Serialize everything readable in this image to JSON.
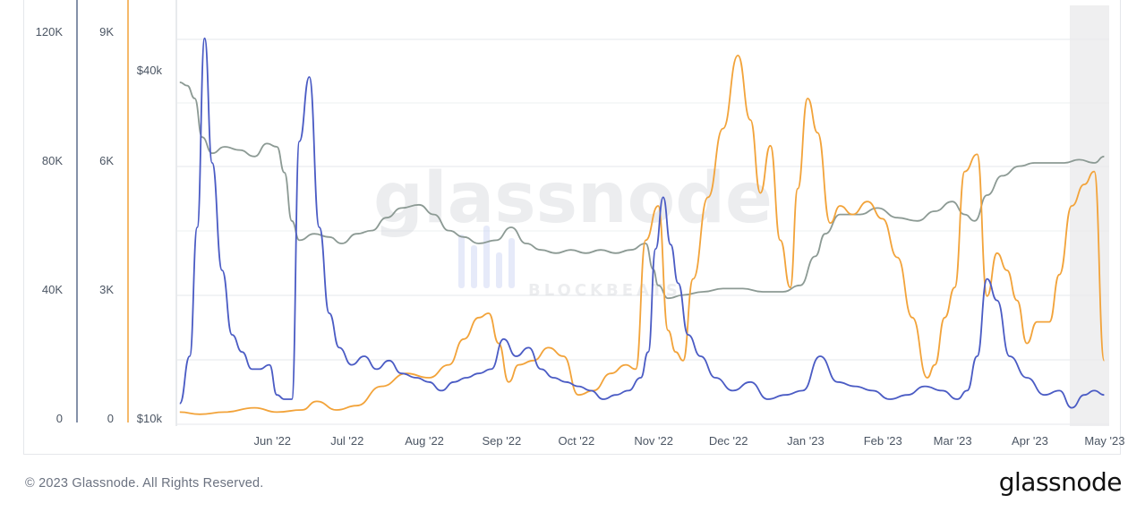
{
  "chart_data": {
    "type": "line",
    "x_ticks": [
      "Jun '22",
      "Jul '22",
      "Aug '22",
      "Sep '22",
      "Oct '22",
      "Nov '22",
      "Dec '22",
      "Jan '23",
      "Feb '23",
      "Mar '23",
      "Apr '23",
      "May '23"
    ],
    "axes": [
      {
        "id": "axis1",
        "color": "#5b6b8c",
        "ticks": [
          "0",
          "40K",
          "80K",
          "120K"
        ],
        "ylim": [
          0,
          120000
        ]
      },
      {
        "id": "axis2",
        "color": "#5b6b8c",
        "ticks": [
          "0",
          "3K",
          "6K",
          "9K"
        ],
        "ylim": [
          0,
          9000
        ]
      },
      {
        "id": "axis3",
        "color": "#f59e0b",
        "ticks": [
          "$10k",
          "$40k"
        ],
        "scale": "log"
      }
    ],
    "series": [
      {
        "axis": "axis2",
        "color": "#4a5bc4",
        "x": [
          "2022-05-02",
          "2022-05-06",
          "2022-05-09",
          "2022-05-12",
          "2022-05-15",
          "2022-05-19",
          "2022-05-23",
          "2022-05-27",
          "2022-05-31",
          "2022-06-03",
          "2022-06-07",
          "2022-06-10",
          "2022-06-13",
          "2022-06-16",
          "2022-06-19",
          "2022-06-23",
          "2022-06-27",
          "2022-07-01",
          "2022-07-05",
          "2022-07-10",
          "2022-07-15",
          "2022-07-20",
          "2022-07-25",
          "2022-07-30",
          "2022-08-05",
          "2022-08-10",
          "2022-08-15",
          "2022-08-20",
          "2022-08-25",
          "2022-08-30",
          "2022-09-04",
          "2022-09-09",
          "2022-09-14",
          "2022-09-19",
          "2022-09-24",
          "2022-09-29",
          "2022-10-04",
          "2022-10-09",
          "2022-10-14",
          "2022-10-19",
          "2022-10-24",
          "2022-10-29",
          "2022-11-03",
          "2022-11-06",
          "2022-11-09",
          "2022-11-12",
          "2022-11-15",
          "2022-11-18",
          "2022-11-22",
          "2022-11-27",
          "2022-12-03",
          "2022-12-10",
          "2022-12-17",
          "2022-12-24",
          "2022-12-31",
          "2023-01-07",
          "2023-01-14",
          "2023-01-21",
          "2023-01-28",
          "2023-02-04",
          "2023-02-11",
          "2023-02-18",
          "2023-02-25",
          "2023-03-04",
          "2023-03-10",
          "2023-03-14",
          "2023-03-18",
          "2023-03-22",
          "2023-03-26",
          "2023-03-31",
          "2023-04-07",
          "2023-04-14",
          "2023-04-20",
          "2023-04-25",
          "2023-04-30",
          "2023-05-04",
          "2023-05-08"
        ],
        "values": [
          400,
          1500,
          4500,
          8900,
          6000,
          3500,
          2000,
          1600,
          1200,
          1200,
          1300,
          600,
          500,
          500,
          6500,
          8000,
          4500,
          2500,
          1700,
          1300,
          1500,
          1200,
          1400,
          1100,
          1000,
          900,
          700,
          900,
          1000,
          1100,
          1200,
          1900,
          1500,
          1700,
          1200,
          1000,
          900,
          800,
          700,
          500,
          600,
          700,
          1000,
          1600,
          4000,
          5200,
          4100,
          3200,
          2000,
          1500,
          1000,
          700,
          900,
          500,
          600,
          700,
          1500,
          900,
          800,
          700,
          500,
          600,
          800,
          700,
          500,
          700,
          1500,
          3300,
          2800,
          1500,
          1000,
          600,
          700,
          300,
          600,
          700,
          600
        ]
      },
      {
        "axis": "axis1",
        "color": "#8c9a94",
        "x": [
          "2022-05-02",
          "2022-05-05",
          "2022-05-08",
          "2022-05-11",
          "2022-05-15",
          "2022-05-20",
          "2022-05-26",
          "2022-06-01",
          "2022-06-06",
          "2022-06-10",
          "2022-06-13",
          "2022-06-16",
          "2022-06-19",
          "2022-06-25",
          "2022-07-01",
          "2022-07-06",
          "2022-07-12",
          "2022-07-18",
          "2022-07-24",
          "2022-07-30",
          "2022-08-06",
          "2022-08-12",
          "2022-08-18",
          "2022-08-24",
          "2022-08-30",
          "2022-09-06",
          "2022-09-12",
          "2022-09-18",
          "2022-09-24",
          "2022-09-30",
          "2022-10-06",
          "2022-10-12",
          "2022-10-18",
          "2022-10-24",
          "2022-10-30",
          "2022-11-05",
          "2022-11-08",
          "2022-11-10",
          "2022-11-14",
          "2022-11-20",
          "2022-11-28",
          "2022-12-06",
          "2022-12-14",
          "2022-12-22",
          "2022-12-30",
          "2023-01-06",
          "2023-01-12",
          "2023-01-16",
          "2023-01-22",
          "2023-01-30",
          "2023-02-06",
          "2023-02-14",
          "2023-02-22",
          "2023-03-01",
          "2023-03-08",
          "2023-03-13",
          "2023-03-17",
          "2023-03-22",
          "2023-03-28",
          "2023-04-04",
          "2023-04-10",
          "2023-04-16",
          "2023-04-22",
          "2023-04-28",
          "2023-05-04",
          "2023-05-08"
        ],
        "values": [
          105000,
          104000,
          100000,
          88000,
          83000,
          85000,
          84000,
          82000,
          86000,
          85000,
          77000,
          62000,
          56000,
          58000,
          57000,
          55000,
          58000,
          59000,
          63000,
          66000,
          67000,
          64000,
          59000,
          57000,
          55000,
          56000,
          60000,
          55000,
          53000,
          52000,
          53000,
          52000,
          53000,
          52000,
          53000,
          55000,
          47000,
          42000,
          38000,
          39000,
          40000,
          41000,
          41000,
          40000,
          40000,
          42000,
          51000,
          58000,
          64000,
          64000,
          66000,
          63000,
          62000,
          65000,
          68000,
          64000,
          62000,
          70000,
          76000,
          79000,
          80000,
          80000,
          80000,
          81000,
          80000,
          82000
        ]
      },
      {
        "axis": "axis2",
        "color": "#f2a33a",
        "x": [
          "2022-05-02",
          "2022-05-10",
          "2022-05-20",
          "2022-06-01",
          "2022-06-10",
          "2022-06-20",
          "2022-06-26",
          "2022-07-04",
          "2022-07-12",
          "2022-07-22",
          "2022-08-01",
          "2022-08-10",
          "2022-08-18",
          "2022-08-24",
          "2022-08-30",
          "2022-09-03",
          "2022-09-07",
          "2022-09-11",
          "2022-09-15",
          "2022-09-21",
          "2022-09-27",
          "2022-10-03",
          "2022-10-09",
          "2022-10-15",
          "2022-10-22",
          "2022-10-28",
          "2022-11-01",
          "2022-11-05",
          "2022-11-10",
          "2022-11-14",
          "2022-11-17",
          "2022-11-20",
          "2022-11-24",
          "2022-11-30",
          "2022-12-06",
          "2022-12-12",
          "2022-12-17",
          "2022-12-21",
          "2022-12-25",
          "2022-12-29",
          "2023-01-02",
          "2023-01-05",
          "2023-01-09",
          "2023-01-13",
          "2023-01-18",
          "2023-01-22",
          "2023-01-27",
          "2023-02-02",
          "2023-02-08",
          "2023-02-14",
          "2023-02-20",
          "2023-02-26",
          "2023-03-01",
          "2023-03-05",
          "2023-03-09",
          "2023-03-13",
          "2023-03-18",
          "2023-03-22",
          "2023-03-26",
          "2023-03-30",
          "2023-04-03",
          "2023-04-07",
          "2023-04-11",
          "2023-04-16",
          "2023-04-20",
          "2023-04-25",
          "2023-04-30",
          "2023-05-04",
          "2023-05-08"
        ],
        "values": [
          200,
          150,
          200,
          300,
          200,
          250,
          450,
          250,
          350,
          800,
          1100,
          1000,
          1300,
          1900,
          2400,
          2500,
          1800,
          900,
          1300,
          1400,
          1700,
          1500,
          600,
          700,
          1100,
          1300,
          1200,
          4200,
          5000,
          2100,
          1600,
          1400,
          3300,
          5200,
          6800,
          8500,
          7000,
          5300,
          6400,
          4200,
          3100,
          5400,
          7500,
          6700,
          4600,
          5000,
          4800,
          5100,
          4700,
          3800,
          2400,
          1000,
          1300,
          2400,
          3100,
          5800,
          6200,
          2900,
          3900,
          3500,
          2800,
          1800,
          2300,
          2300,
          3400,
          5000,
          5500,
          5800,
          1400
        ]
      }
    ]
  },
  "watermark": {
    "main": "glassnode",
    "sub": "BLOCKBEATS"
  },
  "footer": {
    "copyright": "© 2023 Glassnode. All Rights Reserved.",
    "logo": "glassnode"
  }
}
